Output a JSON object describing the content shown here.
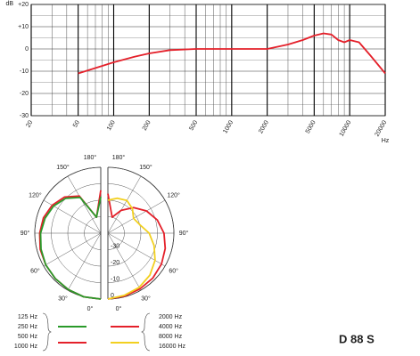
{
  "chart_data": [
    {
      "type": "line",
      "x_scale": "log",
      "ylabel": "dB",
      "xlabel": "Hz",
      "x": [
        50,
        100,
        150,
        200,
        300,
        500,
        1000,
        2000,
        3000,
        4000,
        5000,
        6000,
        7000,
        8000,
        9000,
        10000,
        12000,
        15000,
        20000
      ],
      "series": [
        {
          "color": "#e4202a",
          "values": [
            -11,
            -6,
            -3.5,
            -2,
            -0.5,
            0,
            0,
            0,
            2,
            4,
            6,
            7,
            6.5,
            4,
            3,
            4,
            3,
            -3,
            -11
          ]
        }
      ],
      "xlim": [
        20,
        20000
      ],
      "xticks": [
        20,
        50,
        100,
        200,
        500,
        1000,
        2000,
        5000,
        10000,
        20000
      ],
      "ylim": [
        -30,
        20
      ],
      "yticks": [
        -30,
        -20,
        -10,
        0,
        {
          "value": 10,
          "label": "+10"
        },
        {
          "value": 20,
          "label": "+20"
        }
      ],
      "grid": true
    },
    {
      "type": "polar",
      "theta": [
        0,
        15,
        30,
        45,
        60,
        75,
        90,
        105,
        120,
        135,
        150,
        165,
        180
      ],
      "rlim": [
        -40,
        0
      ],
      "rticks": [
        0,
        -10,
        -20,
        -30
      ],
      "thetaticks": [
        {
          "value": 0,
          "label": "0°"
        },
        {
          "value": 30,
          "label": "30°"
        },
        {
          "value": 60,
          "label": "60°"
        },
        {
          "value": 90,
          "label": "90°"
        },
        {
          "value": 120,
          "label": "120°"
        },
        {
          "value": 150,
          "label": "150°"
        },
        {
          "value": 180,
          "label": "180°"
        }
      ],
      "series": [
        {
          "half": "left",
          "color": "#e4202a",
          "values": [
            0,
            0,
            -0.5,
            -1,
            -1.5,
            -2,
            -3,
            -4,
            -6,
            -9,
            -14,
            -30,
            -14
          ]
        },
        {
          "half": "left",
          "color": "#2a9a2a",
          "values": [
            0,
            0,
            -0.5,
            -1,
            -1.5,
            -2.5,
            -3.5,
            -5,
            -7,
            -10,
            -15,
            -30,
            -18
          ]
        },
        {
          "half": "right",
          "color": "#e4202a",
          "values": [
            0,
            -0.5,
            -1,
            -1.5,
            -2.5,
            -4,
            -6,
            -9,
            -13,
            -18,
            -24,
            -30,
            -16
          ]
        },
        {
          "half": "right",
          "color": "#f2d020",
          "values": [
            0,
            -1,
            -2,
            -4,
            -7,
            -11,
            -15,
            -20,
            -22,
            -19,
            -17,
            -18,
            -20
          ]
        }
      ],
      "legend_groups": [
        {
          "labels": [
            "125 Hz",
            "250 Hz",
            "500 Hz",
            "1000 Hz"
          ],
          "colors": [
            "#2a9a2a",
            "#e4202a"
          ]
        },
        {
          "labels": [
            "2000 Hz",
            "4000 Hz",
            "8000 Hz",
            "16000 Hz"
          ],
          "colors": [
            "#e4202a",
            "#f2d020"
          ]
        }
      ]
    }
  ],
  "model": "D 88 S"
}
